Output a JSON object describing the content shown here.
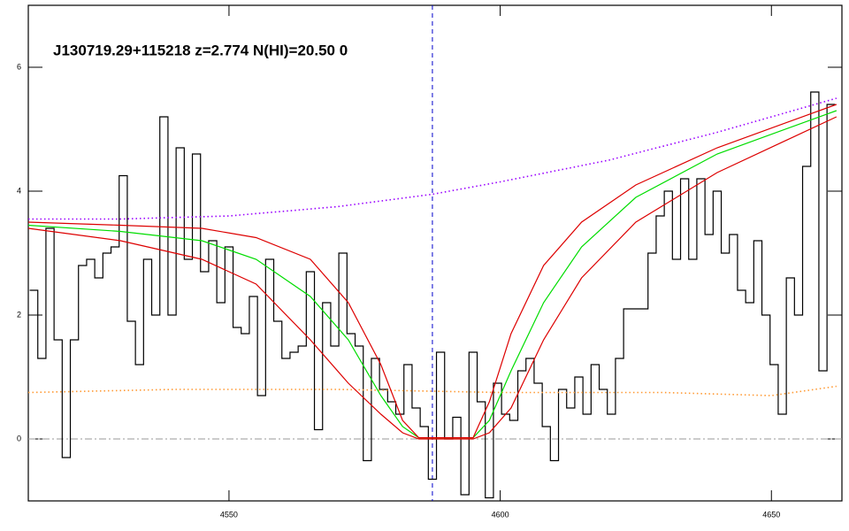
{
  "chart_data": {
    "type": "line",
    "title": "J130719.29+115218 z=2.774 N(HI)=20.50 0",
    "xlim": [
      4513,
      4663
    ],
    "ylim": [
      -1,
      7
    ],
    "xticks": [
      4550,
      4600,
      4650
    ],
    "yticks": [
      0,
      2,
      4,
      6
    ],
    "vline": 4587.5,
    "hline": 0,
    "series": [
      {
        "color": "#000000",
        "style": "step",
        "x": [
          4514,
          4515.5,
          4517,
          4518.5,
          4520,
          4521.5,
          4523,
          4524.5,
          4526,
          4527.5,
          4529,
          4530.5,
          4532,
          4533.5,
          4535,
          4536.5,
          4538,
          4539.5,
          4541,
          4542.5,
          4544,
          4545.5,
          4547,
          4548.5,
          4550,
          4551.5,
          4553,
          4554.5,
          4556,
          4557.5,
          4559,
          4560.5,
          4562,
          4563.5,
          4565,
          4566.5,
          4568,
          4569.5,
          4571,
          4572.5,
          4574,
          4575.5,
          4577,
          4578.5,
          4580,
          4581.5,
          4583,
          4584.5,
          4586,
          4587.5,
          4589,
          4590.5,
          4592,
          4593.5,
          4595,
          4596.5,
          4598,
          4599.5,
          4601,
          4602.5,
          4604,
          4605.5,
          4607,
          4608.5,
          4610,
          4611.5,
          4613,
          4614.5,
          4616,
          4617.5,
          4619,
          4620.5,
          4622,
          4623.5,
          4625,
          4626.5,
          4628,
          4629.5,
          4631,
          4632.5,
          4634,
          4635.5,
          4637,
          4638.5,
          4640,
          4641.5,
          4643,
          4644.5,
          4646,
          4647.5,
          4649,
          4650.5,
          4652,
          4653.5,
          4655,
          4656.5,
          4658,
          4659.5,
          4661
        ],
        "values": [
          2.4,
          1.3,
          3.4,
          1.6,
          -0.3,
          1.6,
          2.8,
          2.9,
          2.6,
          3.0,
          3.1,
          4.25,
          1.9,
          1.2,
          2.9,
          2.0,
          5.2,
          2.0,
          4.7,
          2.9,
          4.6,
          2.7,
          3.2,
          2.2,
          3.1,
          1.8,
          1.7,
          2.3,
          0.7,
          2.9,
          1.9,
          1.3,
          1.4,
          1.5,
          2.7,
          0.15,
          2.2,
          1.5,
          3.0,
          1.7,
          1.5,
          -0.35,
          1.3,
          0.8,
          0.6,
          0.4,
          1.2,
          0.5,
          0.2,
          -0.65,
          1.4,
          0.0,
          0.35,
          -0.9,
          1.4,
          0.6,
          -0.95,
          0.9,
          0.4,
          0.3,
          1.1,
          1.3,
          0.9,
          0.2,
          -0.35,
          0.8,
          0.5,
          1.0,
          0.4,
          1.2,
          0.8,
          0.4,
          1.3,
          2.1,
          2.1,
          2.1,
          3.0,
          3.6,
          4.0,
          2.9,
          4.2,
          2.9,
          4.2,
          3.3,
          4.0,
          3.0,
          3.3,
          2.4,
          2.2,
          3.2,
          2.0,
          1.2,
          0.4,
          2.6,
          2.0,
          4.4,
          5.6,
          1.1,
          5.4
        ]
      },
      {
        "color": "#9900ff",
        "style": "dotted",
        "x": [
          4513,
          4530,
          4550,
          4570,
          4587.5,
          4600,
          4620,
          4640,
          4662
        ],
        "values": [
          3.55,
          3.55,
          3.6,
          3.75,
          3.95,
          4.15,
          4.5,
          4.95,
          5.5
        ]
      },
      {
        "color": "#ff9933",
        "style": "dotted",
        "x": [
          4513,
          4540,
          4570,
          4600,
          4630,
          4650,
          4662
        ],
        "values": [
          0.75,
          0.8,
          0.8,
          0.75,
          0.75,
          0.7,
          0.85
        ]
      },
      {
        "color": "#00dd00",
        "style": "solid",
        "x": [
          4513,
          4530,
          4545,
          4555,
          4565,
          4572,
          4578,
          4582,
          4585,
          4595,
          4598,
          4602,
          4608,
          4615,
          4625,
          4640,
          4662
        ],
        "values": [
          3.45,
          3.35,
          3.2,
          2.9,
          2.3,
          1.6,
          0.7,
          0.2,
          0.02,
          0.02,
          0.3,
          1.1,
          2.2,
          3.1,
          3.9,
          4.6,
          5.3
        ]
      },
      {
        "color": "#dd0000",
        "style": "solid",
        "x": [
          4513,
          4530,
          4545,
          4555,
          4565,
          4572,
          4578,
          4582,
          4585,
          4595,
          4598,
          4602,
          4608,
          4615,
          4625,
          4640,
          4662
        ],
        "values": [
          3.5,
          3.45,
          3.4,
          3.25,
          2.9,
          2.2,
          1.2,
          0.3,
          0.02,
          0.02,
          0.6,
          1.7,
          2.8,
          3.5,
          4.1,
          4.7,
          5.4
        ]
      },
      {
        "color": "#dd0000",
        "style": "solid",
        "x": [
          4513,
          4530,
          4545,
          4555,
          4565,
          4572,
          4578,
          4582,
          4585,
          4595,
          4598,
          4602,
          4608,
          4615,
          4625,
          4640,
          4662
        ],
        "values": [
          3.4,
          3.2,
          2.9,
          2.5,
          1.6,
          0.9,
          0.4,
          0.1,
          0.0,
          0.0,
          0.1,
          0.5,
          1.6,
          2.6,
          3.5,
          4.3,
          5.2
        ]
      }
    ]
  }
}
